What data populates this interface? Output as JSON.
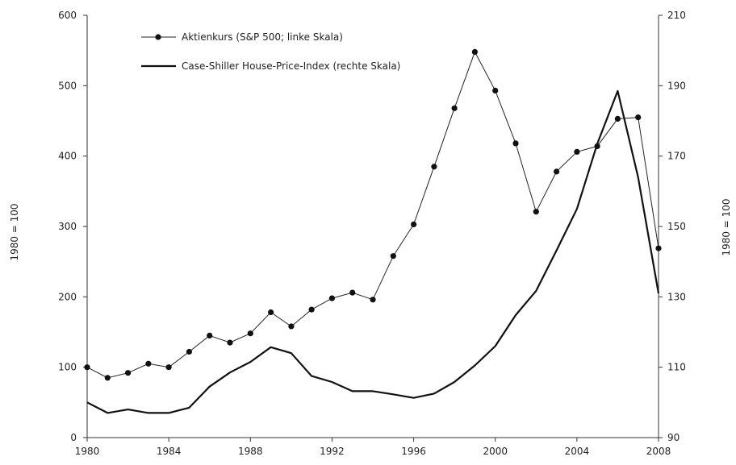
{
  "chart_data": {
    "type": "line",
    "title": "",
    "x": [
      1980,
      1981,
      1982,
      1983,
      1984,
      1985,
      1986,
      1987,
      1988,
      1989,
      1990,
      1991,
      1992,
      1993,
      1994,
      1995,
      1996,
      1997,
      1998,
      1999,
      2000,
      2001,
      2002,
      2003,
      2004,
      2005,
      2006,
      2007,
      2008
    ],
    "xlim": [
      1980,
      2008
    ],
    "xticks": [
      1980,
      1984,
      1988,
      1992,
      1996,
      2000,
      2004,
      2008
    ],
    "xtick_labels": [
      "1980",
      "1984",
      "1988",
      "1992",
      "1996",
      "2000",
      "2004",
      "2008"
    ],
    "ylabel_left": "1980 = 100",
    "ylabel_right": "1980 = 100",
    "ylim_left": [
      0,
      600
    ],
    "yticks_left": [
      0,
      100,
      200,
      300,
      400,
      500,
      600
    ],
    "ytick_labels_left": [
      "0",
      "100",
      "200",
      "300",
      "400",
      "500",
      "600"
    ],
    "ylim_right": [
      90,
      210
    ],
    "yticks_right": [
      90,
      110,
      130,
      150,
      170,
      190,
      210
    ],
    "ytick_labels_right": [
      "90",
      "110",
      "130",
      "150",
      "170",
      "190",
      "210"
    ],
    "grid": false,
    "legend_position": "top-left",
    "series": [
      {
        "name": "Aktienkurs (S&P 500; linke Skala)",
        "axis": "left",
        "marker": "circle",
        "color": "#222222",
        "values": [
          100,
          85,
          92,
          105,
          100,
          122,
          145,
          135,
          148,
          178,
          158,
          182,
          198,
          206,
          196,
          258,
          303,
          385,
          468,
          548,
          493,
          418,
          321,
          378,
          406,
          414,
          453,
          455,
          269
        ]
      },
      {
        "name": "Case-Shiller House-Price-Index (rechte Skala)",
        "axis": "right",
        "marker": "none",
        "color": "#111111",
        "values": [
          100,
          97,
          98,
          97,
          97,
          98.5,
          104.5,
          108.5,
          111.5,
          115.7,
          114,
          107.5,
          105.8,
          103.2,
          103.2,
          102.3,
          101.3,
          102.5,
          105.8,
          110.5,
          116,
          124.8,
          131.7,
          143.2,
          155,
          173.5,
          188.5,
          164,
          131
        ]
      }
    ]
  }
}
